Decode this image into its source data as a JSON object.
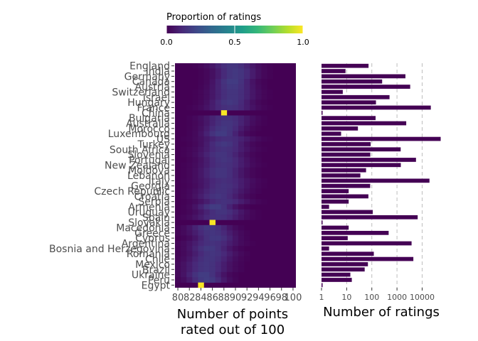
{
  "colors": {
    "viridis": [
      "#440154",
      "#482878",
      "#3e4989",
      "#31688e",
      "#26828e",
      "#1f9e89",
      "#35b779",
      "#6ece58",
      "#b5de2b",
      "#fde725"
    ],
    "bar_fill": "#440154",
    "gridline": "#bdbdbd"
  },
  "legend": {
    "title": "Proportion of ratings",
    "ticks": [
      "0.0",
      "0.5",
      "1.0"
    ],
    "tick_values": [
      0,
      0.5,
      1
    ]
  },
  "chart_data": [
    {
      "type": "heatmap",
      "title": "",
      "xlabel_line1": "Number of points",
      "xlabel_line2": "rated out of 100",
      "ylabel": "",
      "x": [
        80,
        81,
        82,
        83,
        84,
        85,
        86,
        87,
        88,
        89,
        90,
        91,
        92,
        93,
        94,
        95,
        96,
        97,
        98,
        99,
        100
      ],
      "x_tick_labels": [
        "80",
        "82",
        "84",
        "86",
        "88",
        "90",
        "92",
        "94",
        "96",
        "98",
        "100"
      ],
      "xlim": [
        79.5,
        100.5
      ],
      "color_scale": "viridis",
      "color_range": [
        0,
        1
      ],
      "y": [
        "England",
        "India",
        "Germany",
        "Canada",
        "Austria",
        "Switzerland",
        "Israel",
        "Hungary",
        "France",
        "China",
        "Bulgaria",
        "Australia",
        "Morocco",
        "Luxembourg",
        "US",
        "Turkey",
        "South Africa",
        "Slovenia",
        "Portugal",
        "New Zealand",
        "Moldova",
        "Lebanon",
        "Italy",
        "Georgia",
        "Czech Republic",
        "Croatia",
        "Serbia",
        "Armenia",
        "Uruguay",
        "Spain",
        "Slovakia",
        "Macedonia",
        "Greece",
        "Cyprus",
        "Argentina",
        "Bosnia and Herzegovina",
        "Romania",
        "Chile",
        "Mexico",
        "Brazil",
        "Ukraine",
        "Peru",
        "Egypt"
      ],
      "peaks": [
        89.5,
        90,
        90,
        89.5,
        89.5,
        89.5,
        89.5,
        89,
        89,
        88,
        88.5,
        88.5,
        88,
        87.5,
        88.5,
        88,
        88,
        87.5,
        88,
        88,
        87.5,
        87.5,
        88,
        88,
        87.5,
        87,
        88,
        86.5,
        87.5,
        87,
        86,
        85.5,
        86,
        86.5,
        86,
        85.5,
        86,
        85.5,
        85,
        85,
        84.5,
        85,
        84
      ],
      "spreads": [
        2.6,
        2.4,
        2.4,
        2.2,
        2.4,
        2.6,
        2.6,
        2.4,
        2.8,
        0.3,
        2.8,
        2.6,
        2.4,
        2.2,
        3.0,
        2.4,
        2.8,
        2.6,
        2.6,
        2.8,
        2.6,
        2.6,
        3.0,
        2.8,
        2.8,
        2.6,
        2.8,
        2.2,
        2.6,
        2.8,
        0.3,
        2.4,
        2.6,
        2.4,
        2.8,
        2.4,
        2.6,
        2.6,
        2.6,
        2.6,
        2.2,
        2.2,
        0.3
      ]
    },
    {
      "type": "bar",
      "orientation": "horizontal",
      "title": "",
      "xlabel": "Number of ratings",
      "ylabel": "",
      "x_scale": "log10",
      "x_ticks": [
        1,
        10,
        100,
        1000,
        10000
      ],
      "x_tick_labels": [
        "1",
        "10",
        "100",
        "1000",
        "10000"
      ],
      "xlim": [
        1,
        60000
      ],
      "categories": [
        "England",
        "India",
        "Germany",
        "Canada",
        "Austria",
        "Switzerland",
        "Israel",
        "Hungary",
        "France",
        "China",
        "Bulgaria",
        "Australia",
        "Morocco",
        "Luxembourg",
        "US",
        "Turkey",
        "South Africa",
        "Slovenia",
        "Portugal",
        "New Zealand",
        "Moldova",
        "Lebanon",
        "Italy",
        "Georgia",
        "Czech Republic",
        "Croatia",
        "Serbia",
        "Armenia",
        "Uruguay",
        "Spain",
        "Slovakia",
        "Macedonia",
        "Greece",
        "Cyprus",
        "Argentina",
        "Bosnia and Herzegovina",
        "Romania",
        "Chile",
        "Mexico",
        "Brazil",
        "Ukraine",
        "Peru",
        "Egypt"
      ],
      "values": [
        74,
        9,
        2165,
        257,
        3345,
        7,
        505,
        146,
        22093,
        1,
        141,
        2329,
        28,
        6,
        54504,
        90,
        1401,
        87,
        5691,
        1419,
        59,
        35,
        19540,
        86,
        12,
        73,
        12,
        2,
        109,
        6645,
        1,
        12,
        466,
        11,
        3800,
        2,
        120,
        4472,
        70,
        52,
        14,
        16,
        1
      ]
    }
  ]
}
